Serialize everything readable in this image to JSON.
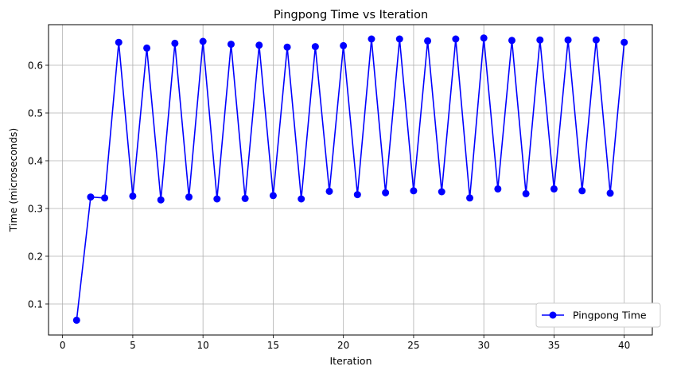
{
  "chart_data": {
    "type": "line",
    "title": "Pingpong Time vs Iteration",
    "xlabel": "Iteration",
    "ylabel": "Time (microseconds)",
    "xlim": [
      -1.0,
      42.0
    ],
    "ylim": [
      0.035,
      0.685
    ],
    "xticks": [
      0,
      5,
      10,
      15,
      20,
      25,
      30,
      35,
      40
    ],
    "yticks": [
      0.1,
      0.2,
      0.3,
      0.4,
      0.5,
      0.6
    ],
    "grid": true,
    "legend_position": "lower-right",
    "series": [
      {
        "name": "Pingpong Time",
        "color": "#0000ff",
        "marker": "circle",
        "x": [
          1,
          2,
          3,
          4,
          5,
          6,
          7,
          8,
          9,
          10,
          11,
          12,
          13,
          14,
          15,
          16,
          17,
          18,
          19,
          20,
          21,
          22,
          23,
          24,
          25,
          26,
          27,
          28,
          29,
          30,
          31,
          32,
          33,
          34,
          35,
          36,
          37,
          38,
          39,
          40
        ],
        "y": [
          0.066,
          0.324,
          0.322,
          0.648,
          0.326,
          0.636,
          0.318,
          0.646,
          0.324,
          0.65,
          0.32,
          0.644,
          0.321,
          0.642,
          0.327,
          0.638,
          0.32,
          0.639,
          0.336,
          0.641,
          0.329,
          0.655,
          0.333,
          0.655,
          0.337,
          0.651,
          0.335,
          0.655,
          0.322,
          0.657,
          0.341,
          0.652,
          0.331,
          0.653,
          0.341,
          0.653,
          0.337,
          0.653,
          0.332,
          0.648
        ]
      }
    ]
  }
}
